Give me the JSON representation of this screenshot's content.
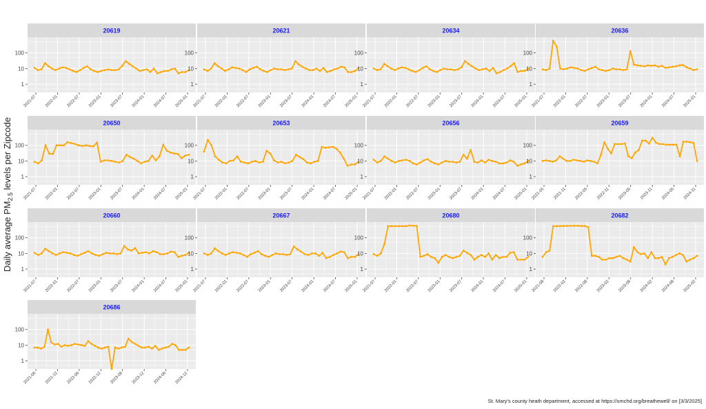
{
  "chart_data": {
    "type": "line",
    "y_scale": "log10",
    "ylim": [
      0.3,
      1000
    ],
    "y_ticks": [
      "1",
      "10",
      "100"
    ],
    "ylabel_prefix": "Daily average PM",
    "ylabel_sub": "2.5",
    "ylabel_suffix": " levels per Zipcode",
    "caption": "St. Mary's county heath department, accessed at https://smchd.org/breathewell/ on [3/3/2025]",
    "colors": {
      "line": "#FFA500",
      "strip": "#D9D9D9",
      "panel": "#EBEBEB",
      "grid": "#FFFFFF",
      "strip_text": "#1A1AFF"
    },
    "facets": [
      {
        "zipcode": "20619",
        "x_ticks": [
          "2021-07",
          "2022-01",
          "2022-07",
          "2023-01",
          "2023-07",
          "2024-01",
          "2024-07",
          "2025-01"
        ],
        "y": [
          11,
          8,
          9,
          22,
          14,
          10,
          8,
          10,
          12,
          11,
          9,
          7,
          6,
          8,
          11,
          14,
          9,
          7,
          6,
          7,
          8,
          9,
          8,
          8,
          9,
          15,
          30,
          20,
          14,
          10,
          7,
          8,
          9,
          6,
          10,
          5,
          6,
          7,
          7,
          9,
          10,
          5,
          6,
          6,
          8
        ]
      },
      {
        "zipcode": "20621",
        "x_ticks": [
          "2021-07",
          "2022-01",
          "2022-07",
          "2023-01",
          "2023-07",
          "2024-01",
          "2024-07",
          "2025-01"
        ],
        "y": [
          9,
          7,
          10,
          22,
          14,
          10,
          7,
          9,
          12,
          11,
          10,
          8,
          6,
          9,
          11,
          13,
          9,
          7,
          6,
          8,
          10,
          9,
          9,
          8,
          9,
          10,
          30,
          18,
          13,
          10,
          8,
          8,
          10,
          7,
          11,
          6,
          7,
          9,
          10,
          13,
          12,
          6,
          6,
          7,
          11
        ]
      },
      {
        "zipcode": "20634",
        "x_ticks": [
          "2021-07",
          "2022-01",
          "2022-07",
          "2023-01",
          "2023-07",
          "2024-01",
          "2024-07",
          "2025-01"
        ],
        "y": [
          10,
          8,
          9,
          20,
          14,
          10,
          8,
          10,
          12,
          11,
          9,
          7,
          6,
          8,
          11,
          14,
          9,
          7,
          6,
          8,
          10,
          9,
          9,
          8,
          9,
          12,
          30,
          20,
          14,
          10,
          8,
          9,
          10,
          7,
          11,
          5,
          6,
          8,
          10,
          14,
          22,
          6,
          7,
          7,
          10
        ]
      },
      {
        "zipcode": "20636",
        "x_ticks": [
          "2021-07",
          "2022-01",
          "2022-07",
          "2023-01",
          "2023-07",
          "2024-01",
          "2024-07",
          "2025-01"
        ],
        "y": [
          9,
          8,
          10,
          600,
          250,
          10,
          9,
          10,
          12,
          11,
          10,
          8,
          7,
          9,
          11,
          13,
          9,
          8,
          7,
          8,
          10,
          9,
          9,
          8,
          9,
          130,
          18,
          16,
          15,
          14,
          16,
          15,
          16,
          13,
          15,
          11,
          12,
          13,
          14,
          16,
          17,
          12,
          10,
          8,
          9
        ]
      },
      {
        "zipcode": "20650",
        "x_ticks": [
          "2021-07",
          "2022-01",
          "2022-07",
          "2023-01",
          "2023-07",
          "2024-01",
          "2024-07",
          "2025-01"
        ],
        "y": [
          9,
          7,
          11,
          100,
          30,
          28,
          100,
          100,
          100,
          160,
          140,
          120,
          100,
          90,
          100,
          90,
          85,
          150,
          9,
          11,
          11,
          10,
          9,
          8,
          10,
          25,
          18,
          14,
          10,
          7,
          9,
          10,
          22,
          11,
          20,
          110,
          45,
          35,
          30,
          28,
          15,
          22,
          25
        ]
      },
      {
        "zipcode": "20653",
        "x_ticks": [
          "2021-07",
          "2022-01",
          "2022-07",
          "2023-01",
          "2023-07",
          "2024-01",
          "2024-07",
          "2025-01"
        ],
        "y": [
          40,
          220,
          100,
          20,
          12,
          8,
          7,
          10,
          11,
          20,
          9,
          8,
          7,
          9,
          10,
          8,
          9,
          45,
          30,
          11,
          8,
          9,
          7,
          8,
          10,
          25,
          18,
          13,
          8,
          7,
          9,
          10,
          80,
          70,
          75,
          80,
          60,
          35,
          14,
          5,
          6,
          6,
          9
        ]
      },
      {
        "zipcode": "20656",
        "x_ticks": [
          "2021-07",
          "2022-01",
          "2022-07",
          "2023-01",
          "2023-07",
          "2024-01",
          "2024-07",
          "2025-01"
        ],
        "y": [
          12,
          8,
          10,
          20,
          14,
          10,
          8,
          10,
          11,
          12,
          10,
          7,
          6,
          8,
          11,
          13,
          9,
          7,
          6,
          8,
          10,
          9,
          9,
          8,
          9,
          25,
          14,
          50,
          9,
          8,
          11,
          8,
          12,
          10,
          9,
          7,
          7,
          8,
          11,
          9,
          5,
          6,
          7,
          10
        ]
      },
      {
        "zipcode": "20659",
        "x_ticks": [
          "2021-05",
          "2021-11",
          "2022-05",
          "2022-11",
          "2023-05",
          "2023-11",
          "2024-05",
          "2024-11"
        ],
        "y": [
          10,
          11,
          10,
          9,
          11,
          20,
          14,
          10,
          10,
          12,
          11,
          10,
          9,
          11,
          10,
          9,
          7,
          25,
          160,
          60,
          30,
          120,
          120,
          120,
          130,
          20,
          15,
          35,
          50,
          200,
          200,
          130,
          300,
          150,
          120,
          120,
          110,
          110,
          110,
          110,
          20,
          170,
          170,
          160,
          140,
          10
        ]
      },
      {
        "zipcode": "20660",
        "x_ticks": [
          "2021-07",
          "2022-01",
          "2022-07",
          "2023-01",
          "2023-07",
          "2024-01",
          "2024-07",
          "2025-01"
        ],
        "y": [
          11,
          8,
          10,
          20,
          14,
          10,
          8,
          10,
          12,
          11,
          10,
          8,
          7,
          9,
          11,
          14,
          10,
          8,
          7,
          9,
          11,
          10,
          10,
          9,
          10,
          30,
          18,
          15,
          22,
          10,
          11,
          12,
          10,
          14,
          12,
          9,
          9,
          10,
          13,
          12,
          6,
          7,
          8,
          11
        ]
      },
      {
        "zipcode": "20667",
        "x_ticks": [
          "2021-07",
          "2022-01",
          "2022-07",
          "2023-01",
          "2023-07",
          "2024-01",
          "2024-07",
          "2025-01"
        ],
        "y": [
          10,
          8,
          10,
          21,
          14,
          10,
          8,
          10,
          12,
          11,
          10,
          8,
          6,
          9,
          11,
          14,
          9,
          7,
          6,
          8,
          10,
          9,
          9,
          8,
          9,
          28,
          18,
          13,
          9,
          8,
          10,
          10,
          7,
          11,
          5,
          6,
          8,
          10,
          13,
          12,
          5,
          6,
          6,
          9
        ]
      },
      {
        "zipcode": "20680",
        "x_ticks": [
          "2021-07",
          "2022-01",
          "2022-07",
          "2023-01",
          "2023-07",
          "2024-01",
          "2024-07",
          "2025-01"
        ],
        "y": [
          9,
          7,
          10,
          40,
          550,
          550,
          550,
          550,
          550,
          550,
          600,
          580,
          560,
          6,
          7,
          9,
          6,
          5,
          2.5,
          6,
          8,
          6,
          5,
          6,
          7,
          15,
          11,
          8,
          4,
          6,
          8,
          6,
          10,
          4,
          8,
          5,
          6,
          6,
          11,
          12,
          4,
          4,
          4,
          6
        ]
      },
      {
        "zipcode": "20682",
        "x_ticks": [
          "2021-08",
          "2022-02",
          "2022-08",
          "2023-02",
          "2023-08",
          "2024-02",
          "2024-08",
          "2025-02"
        ],
        "y": [
          6,
          12,
          15,
          550,
          550,
          560,
          560,
          570,
          570,
          580,
          580,
          560,
          560,
          470,
          7,
          7,
          6,
          4,
          4,
          5,
          5,
          6,
          7,
          5,
          4,
          3,
          25,
          12,
          9,
          10,
          5,
          12,
          5,
          5,
          6,
          2,
          5,
          6,
          8,
          10,
          8,
          3,
          4,
          5,
          7
        ]
      },
      {
        "zipcode": "20686",
        "x_ticks": [
          "2021-06",
          "2021-12",
          "2022-06",
          "2022-12",
          "2023-06",
          "2023-12",
          "2024-06",
          "2024-12"
        ],
        "y": [
          7,
          7,
          6,
          8,
          100,
          15,
          11,
          12,
          8,
          10,
          9,
          10,
          12,
          11,
          10,
          9,
          18,
          12,
          9,
          7,
          6,
          7,
          8,
          0.3,
          7,
          6,
          7,
          8,
          26,
          16,
          12,
          9,
          7,
          7,
          8,
          6,
          9,
          5,
          6,
          7,
          8,
          12,
          10,
          5,
          5,
          5,
          7
        ]
      }
    ]
  }
}
